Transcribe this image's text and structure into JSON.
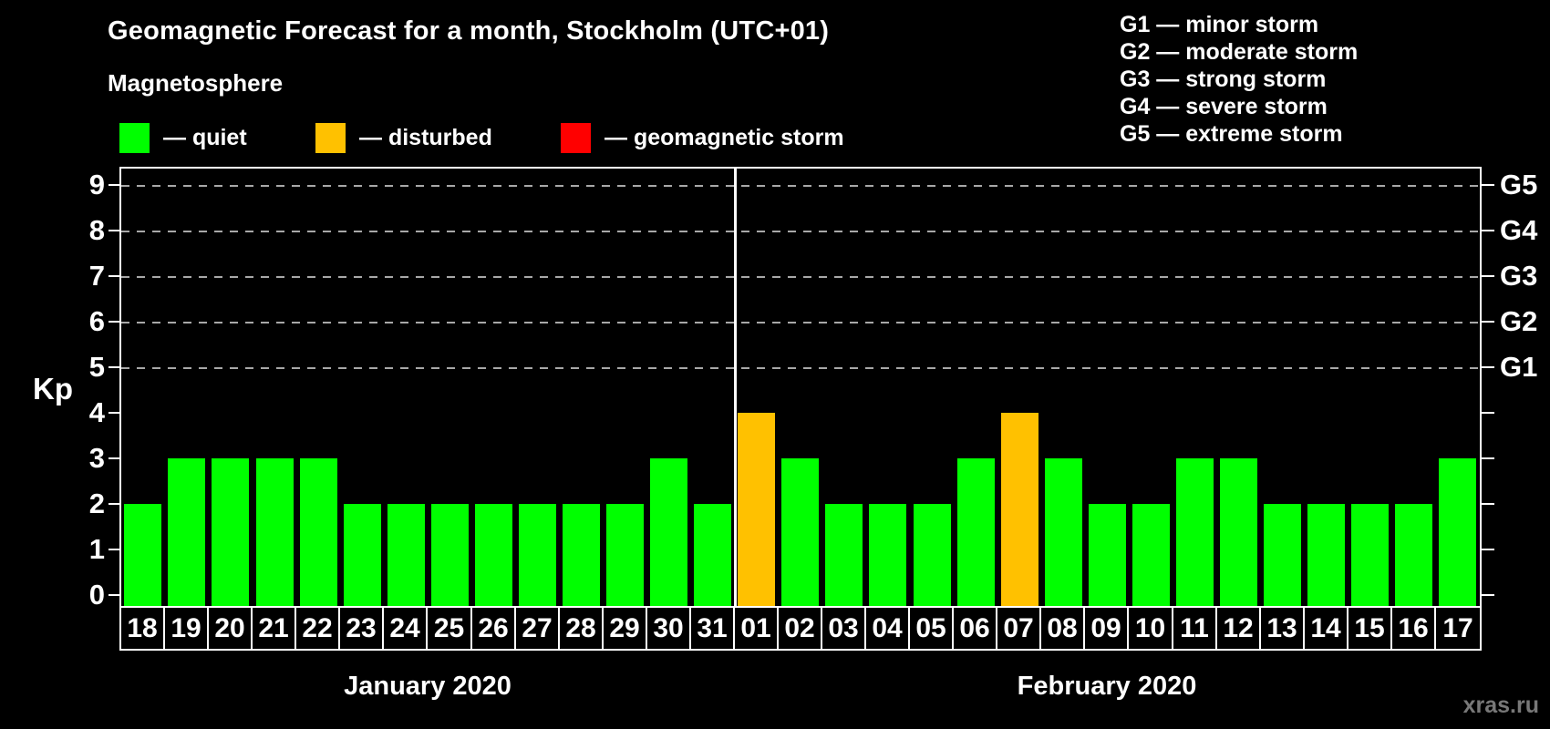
{
  "header": {
    "title": "Geomagnetic Forecast for a month, Stockholm (UTC+01)"
  },
  "magnetosphere_legend": {
    "title": "Magnetosphere",
    "items": [
      {
        "key": "quiet",
        "label": "— quiet",
        "color": "#00ff00"
      },
      {
        "key": "disturbed",
        "label": "— disturbed",
        "color": "#ffc100"
      },
      {
        "key": "storm",
        "label": "— geomagnetic storm",
        "color": "#ff0000"
      }
    ]
  },
  "storm_scale_legend": {
    "items": [
      "G1 — minor storm",
      "G2 — moderate storm",
      "G3 — strong storm",
      "G4 — severe storm",
      "G5 — extreme storm"
    ]
  },
  "watermark": "xras.ru",
  "chart_data": {
    "type": "bar",
    "title": "Geomagnetic Forecast for a month, Stockholm (UTC+01)",
    "ylabel": "Kp",
    "ylim": [
      0,
      9
    ],
    "yticks": [
      0,
      1,
      2,
      3,
      4,
      5,
      6,
      7,
      8,
      9
    ],
    "gridlines_at_kp": [
      5,
      6,
      7,
      8,
      9
    ],
    "grid_style": "dashed horizontal lines at Kp 5–9 only",
    "right_axis_labels": [
      {
        "kp": 5,
        "text": "G1"
      },
      {
        "kp": 6,
        "text": "G2"
      },
      {
        "kp": 7,
        "text": "G3"
      },
      {
        "kp": 8,
        "text": "G4"
      },
      {
        "kp": 9,
        "text": "G5"
      }
    ],
    "status_colors": {
      "quiet": "#00ff00",
      "disturbed": "#ffc100",
      "storm": "#ff0000"
    },
    "months": [
      {
        "label": "January 2020",
        "points": [
          {
            "day": "18",
            "kp": 2,
            "status": "quiet"
          },
          {
            "day": "19",
            "kp": 3,
            "status": "quiet"
          },
          {
            "day": "20",
            "kp": 3,
            "status": "quiet"
          },
          {
            "day": "21",
            "kp": 3,
            "status": "quiet"
          },
          {
            "day": "22",
            "kp": 3,
            "status": "quiet"
          },
          {
            "day": "23",
            "kp": 2,
            "status": "quiet"
          },
          {
            "day": "24",
            "kp": 2,
            "status": "quiet"
          },
          {
            "day": "25",
            "kp": 2,
            "status": "quiet"
          },
          {
            "day": "26",
            "kp": 2,
            "status": "quiet"
          },
          {
            "day": "27",
            "kp": 2,
            "status": "quiet"
          },
          {
            "day": "28",
            "kp": 2,
            "status": "quiet"
          },
          {
            "day": "29",
            "kp": 2,
            "status": "quiet"
          },
          {
            "day": "30",
            "kp": 3,
            "status": "quiet"
          },
          {
            "day": "31",
            "kp": 2,
            "status": "quiet"
          }
        ]
      },
      {
        "label": "February 2020",
        "points": [
          {
            "day": "01",
            "kp": 4,
            "status": "disturbed"
          },
          {
            "day": "02",
            "kp": 3,
            "status": "quiet"
          },
          {
            "day": "03",
            "kp": 2,
            "status": "quiet"
          },
          {
            "day": "04",
            "kp": 2,
            "status": "quiet"
          },
          {
            "day": "05",
            "kp": 2,
            "status": "quiet"
          },
          {
            "day": "06",
            "kp": 3,
            "status": "quiet"
          },
          {
            "day": "07",
            "kp": 4,
            "status": "disturbed"
          },
          {
            "day": "08",
            "kp": 3,
            "status": "quiet"
          },
          {
            "day": "09",
            "kp": 2,
            "status": "quiet"
          },
          {
            "day": "10",
            "kp": 2,
            "status": "quiet"
          },
          {
            "day": "11",
            "kp": 3,
            "status": "quiet"
          },
          {
            "day": "12",
            "kp": 3,
            "status": "quiet"
          },
          {
            "day": "13",
            "kp": 2,
            "status": "quiet"
          },
          {
            "day": "14",
            "kp": 2,
            "status": "quiet"
          },
          {
            "day": "15",
            "kp": 2,
            "status": "quiet"
          },
          {
            "day": "16",
            "kp": 2,
            "status": "quiet"
          },
          {
            "day": "17",
            "kp": 3,
            "status": "quiet"
          }
        ]
      }
    ]
  }
}
